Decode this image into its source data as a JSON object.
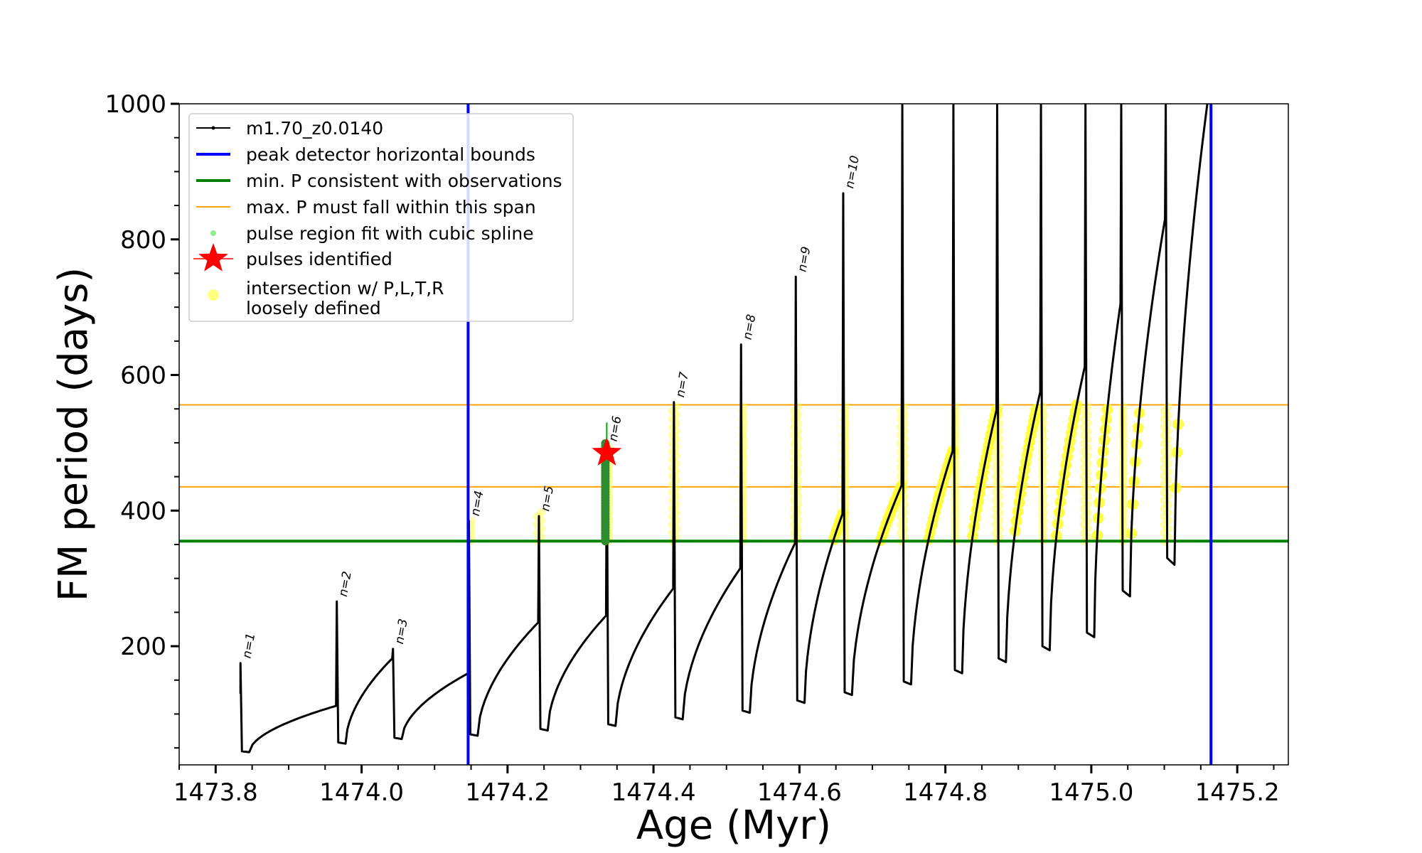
{
  "chart_data": {
    "type": "line",
    "xlabel": "Age (Myr)",
    "ylabel": "FM period (days)",
    "xlim": [
      1473.75,
      1475.27
    ],
    "ylim": [
      25,
      1000
    ],
    "xticks": [
      1473.8,
      1474.0,
      1474.2,
      1474.4,
      1474.6,
      1474.8,
      1475.0,
      1475.2
    ],
    "xtick_labels": [
      "1473.8",
      "1474.0",
      "1474.2",
      "1474.4",
      "1474.6",
      "1474.8",
      "1475.0",
      "1475.2"
    ],
    "yticks": [
      200,
      400,
      600,
      800,
      1000
    ],
    "ytick_labels": [
      "200",
      "400",
      "600",
      "800",
      "1000"
    ],
    "legend": {
      "position": "top-left",
      "entries": [
        {
          "label": "m1.70_z0.0140",
          "kind": "line-marker",
          "color": "#000000"
        },
        {
          "label": "peak detector horizontal bounds",
          "kind": "line",
          "color": "#0000ff"
        },
        {
          "label": "min. P consistent with observations",
          "kind": "line",
          "color": "#008000"
        },
        {
          "label": "max. P must fall within this span",
          "kind": "thin-line",
          "color": "#ffa500"
        },
        {
          "label": "pulse region fit with cubic spline",
          "kind": "dot",
          "color": "#90ee90"
        },
        {
          "label": "pulses identified",
          "kind": "star",
          "color": "#ff0000"
        },
        {
          "label": "intersection w/ P,L,T,R",
          "label2": "loosely defined",
          "kind": "circle",
          "color": "#ffff80"
        }
      ]
    },
    "vertical_bounds": [
      1474.146,
      1475.164
    ],
    "min_period": 355,
    "max_period_span": [
      435,
      556
    ],
    "pulses": [
      {
        "x": 1473.834,
        "peak": 175,
        "min": 45,
        "label": "n=1"
      },
      {
        "x": 1473.966,
        "peak": 266,
        "min": 58,
        "label": "n=2"
      },
      {
        "x": 1474.043,
        "peak": 196,
        "min": 65,
        "label": "n=3"
      },
      {
        "x": 1474.147,
        "peak": 385,
        "min": 70,
        "label": "n=4"
      },
      {
        "x": 1474.243,
        "peak": 392,
        "min": 78,
        "label": "n=5"
      },
      {
        "x": 1474.336,
        "peak": 495,
        "min": 85,
        "label": "n=6"
      },
      {
        "x": 1474.428,
        "peak": 560,
        "min": 95,
        "label": "n=7"
      },
      {
        "x": 1474.52,
        "peak": 645,
        "min": 105,
        "label": "n=8"
      },
      {
        "x": 1474.595,
        "peak": 745,
        "min": 120,
        "label": "n=9"
      },
      {
        "x": 1474.66,
        "peak": 868,
        "min": 132,
        "label": "n=10"
      },
      {
        "x": 1474.741,
        "peak": 1000,
        "min": 148
      },
      {
        "x": 1474.811,
        "peak": 1000,
        "min": 165
      },
      {
        "x": 1474.871,
        "peak": 1000,
        "min": 182
      },
      {
        "x": 1474.931,
        "peak": 1000,
        "min": 200
      },
      {
        "x": 1474.992,
        "peak": 1000,
        "min": 220
      },
      {
        "x": 1475.041,
        "peak": 1000,
        "min": 282
      },
      {
        "x": 1475.102,
        "peak": 1000,
        "min": 330
      }
    ],
    "identified_pulse": {
      "x": 1474.336,
      "y": 485
    },
    "spline_region": {
      "x": 1474.336,
      "y_range": [
        355,
        530
      ]
    }
  }
}
